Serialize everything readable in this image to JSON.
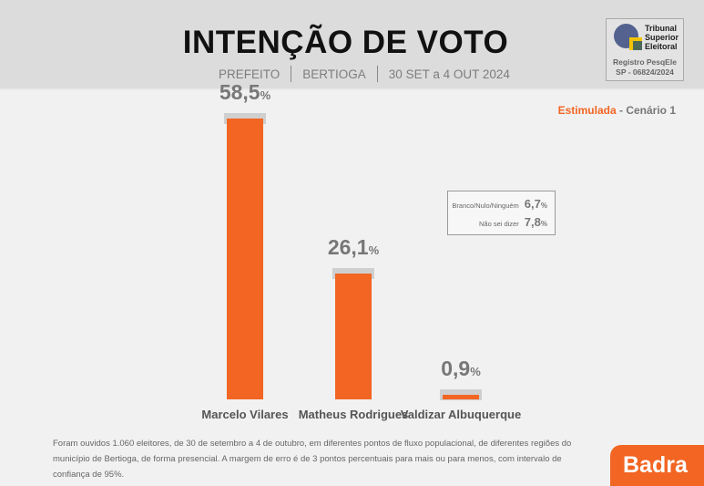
{
  "header": {
    "title": "INTENÇÃO DE VOTO",
    "office": "PREFEITO",
    "city": "BERTIOGA",
    "period": "30 SET a 4 OUT 2024"
  },
  "tse": {
    "name_lines": [
      "Tribunal",
      "Superior",
      "Eleitoral"
    ],
    "registry_label": "Registro PesqEle",
    "registry_number": "SP - 06824/2024"
  },
  "scenario": {
    "type": "Estimulada",
    "separator": " - ",
    "name": "Cenário 1"
  },
  "others": [
    {
      "label": "Branco/Nulo/Ninguém",
      "value": "6,7"
    },
    {
      "label": "Não sei dizer",
      "value": "7,8"
    }
  ],
  "percent_sign": "%",
  "chart_data": {
    "type": "bar",
    "title": "INTENÇÃO DE VOTO",
    "categories": [
      "Marcelo Vilares",
      "Matheus Rodrigues",
      "Valdizar Albuquerque"
    ],
    "values": [
      58.5,
      26.1,
      0.9
    ],
    "labels": [
      "58,5",
      "26,1",
      "0,9"
    ],
    "ylim": [
      0,
      60
    ],
    "color": "#f26522"
  },
  "footnote": "Foram ouvidos 1.060 eleitores, de 30 de setembro a 4 de outubro, em diferentes pontos de fluxo populacional, de diferentes regiões do município de Bertioga, de forma presencial. A margem de erro é de 3 pontos percentuais para mais ou para menos, com intervalo de confiança de 95%.",
  "brand": "Badra"
}
